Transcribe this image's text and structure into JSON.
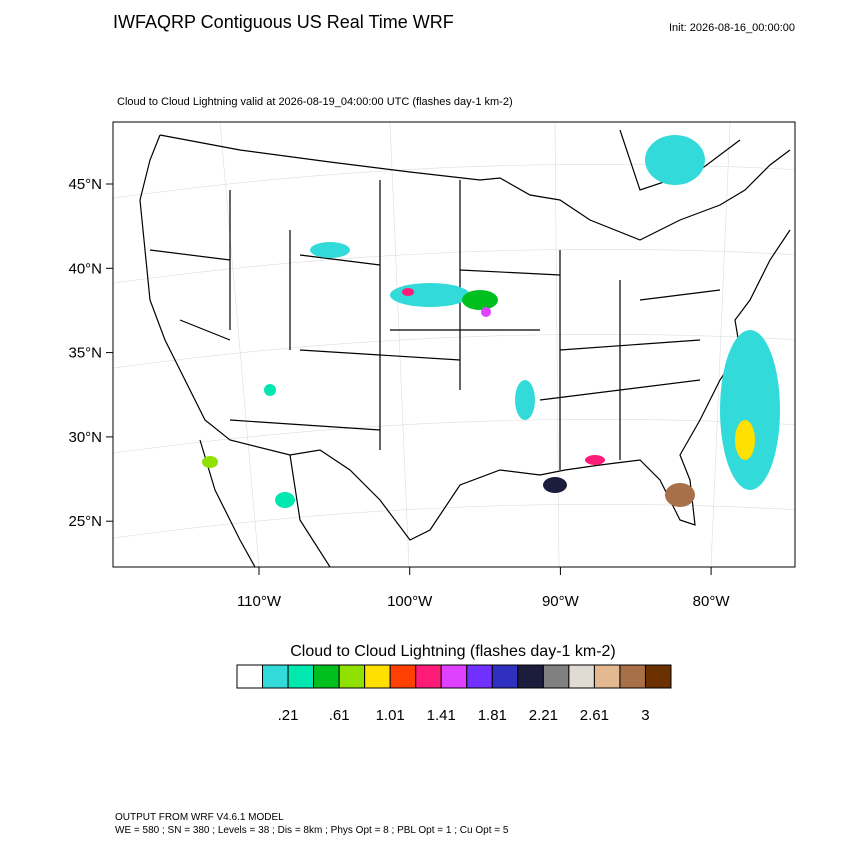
{
  "header": {
    "title": "IWFAQRP Contiguous US Real Time WRF",
    "init": "Init: 2026-08-16_00:00:00"
  },
  "map": {
    "subtitle": "Cloud to Cloud Lightning valid at 2026-08-19_04:00:00 UTC   (flashes day-1 km-2)",
    "lat_labels": [
      "45°N",
      "40°N",
      "35°N",
      "30°N",
      "25°N"
    ],
    "lon_labels": [
      "110°W",
      "100°W",
      "90°W",
      "80°W"
    ]
  },
  "colorbar": {
    "title": "Cloud to Cloud Lightning  (flashes day-1 km-2)",
    "colors": [
      "#ffffff",
      "#33dada",
      "#00e8b0",
      "#00c020",
      "#90e000",
      "#ffe000",
      "#ff4000",
      "#ff1c78",
      "#e040ff",
      "#7030ff",
      "#3030c0",
      "#1c1c3c",
      "#808080",
      "#e0dcd4",
      "#e4b890",
      "#a87048",
      "#6a3000"
    ],
    "labels": [
      ".21",
      ".61",
      "1.01",
      "1.41",
      "1.81",
      "2.21",
      "2.61",
      "3"
    ]
  },
  "footer": {
    "lines": [
      "OUTPUT FROM WRF V4.6.1 MODEL",
      "WE = 580 ; SN = 380 ; Levels = 38 ; Dis = 8km ; Phys Opt = 8 ; PBL Opt = 1 ; Cu Opt = 5"
    ]
  }
}
